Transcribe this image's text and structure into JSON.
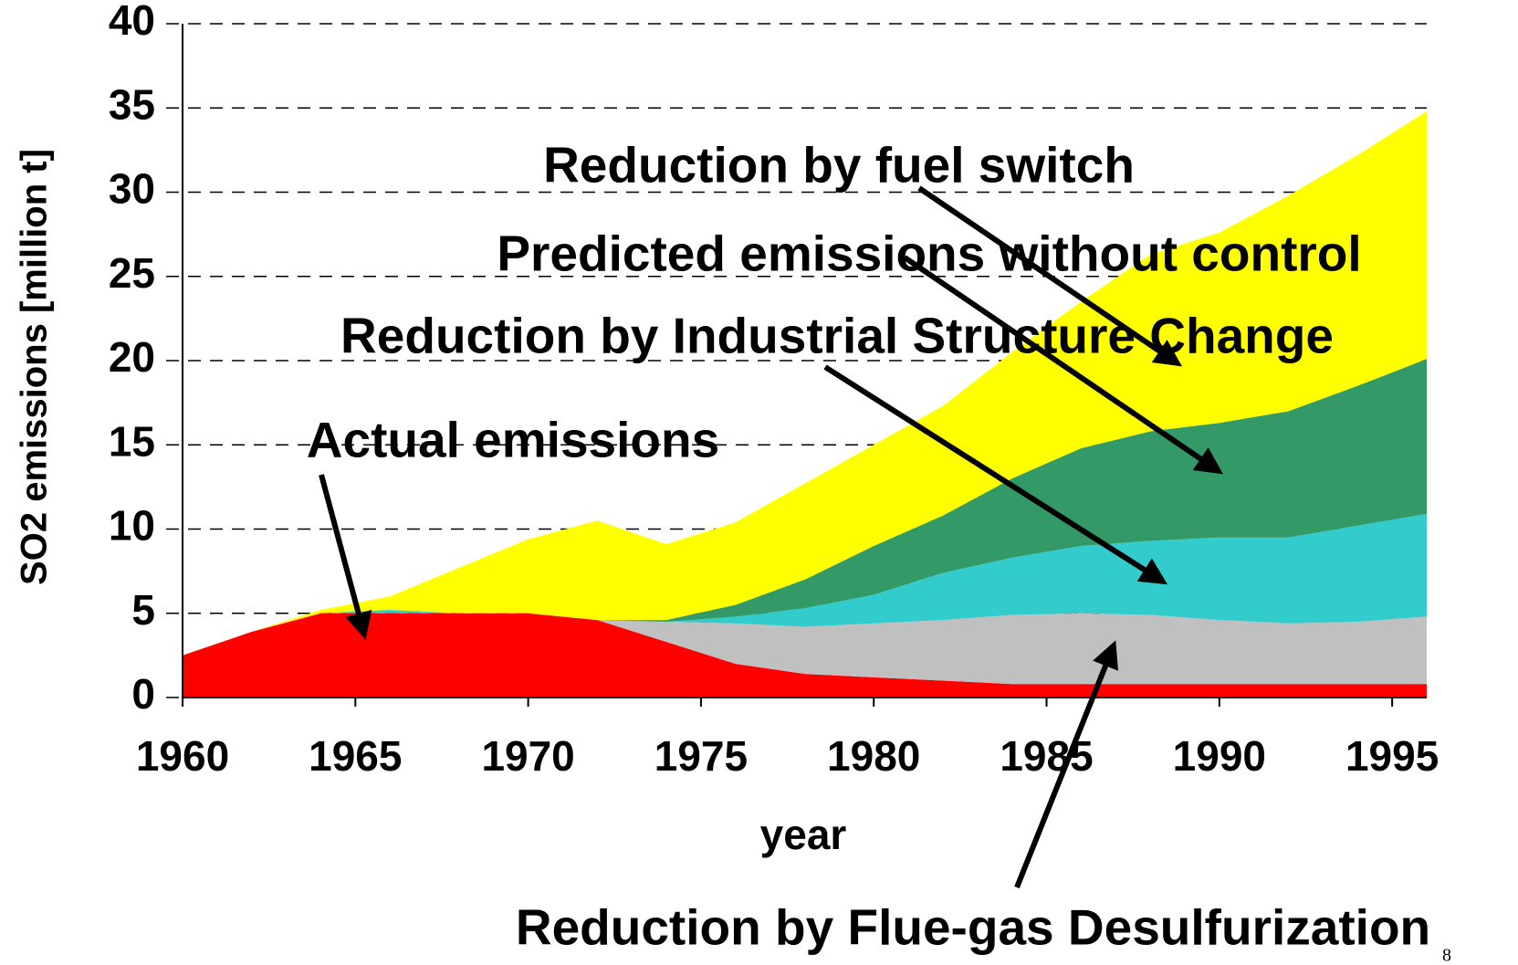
{
  "chart_data": {
    "type": "stacked_area",
    "ylabel": "SO2 emissions [million t]",
    "xlabel": "year",
    "x": [
      1960,
      1962,
      1964,
      1966,
      1968,
      1970,
      1972,
      1974,
      1976,
      1978,
      1980,
      1982,
      1984,
      1986,
      1988,
      1990,
      1992,
      1994,
      1996
    ],
    "series": [
      {
        "name": "Actual emissions",
        "color": "#ff0000",
        "values": [
          2.5,
          3.9,
          5.0,
          5.0,
          5.0,
          5.0,
          4.6,
          3.3,
          2.0,
          1.4,
          1.2,
          1.0,
          0.8,
          0.8,
          0.8,
          0.8,
          0.8,
          0.8,
          0.8
        ]
      },
      {
        "name": "Reduction by Flue-gas Desulfurization",
        "color": "#c0c0c0",
        "values": [
          0,
          0,
          0,
          0,
          0,
          0,
          0,
          1.2,
          2.4,
          2.8,
          3.2,
          3.6,
          4.1,
          4.2,
          4.1,
          3.8,
          3.6,
          3.7,
          4.0
        ]
      },
      {
        "name": "Reduction by Industrial Structure Change",
        "color": "#33cccc",
        "values": [
          0,
          0,
          0,
          0.2,
          0,
          0,
          0,
          0,
          0.4,
          1.1,
          1.7,
          2.8,
          3.4,
          4.0,
          4.4,
          4.9,
          5.1,
          5.7,
          6.1
        ]
      },
      {
        "name": "Predicted emissions without control",
        "color": "#339966",
        "values": [
          0,
          0,
          0,
          0,
          0,
          0,
          0,
          0.1,
          0.7,
          1.7,
          2.9,
          3.4,
          4.7,
          5.8,
          6.5,
          6.8,
          7.5,
          8.3,
          9.2
        ]
      },
      {
        "name": "Reduction by fuel switch",
        "color": "#ffff00",
        "values": [
          0,
          0,
          0.2,
          0.8,
          2.7,
          4.4,
          5.9,
          4.5,
          4.9,
          5.7,
          6.0,
          6.5,
          7.5,
          8.7,
          10.5,
          11.3,
          12.8,
          13.7,
          14.7
        ]
      }
    ],
    "xlim": [
      1960,
      1996
    ],
    "xticks": [
      1960,
      1965,
      1970,
      1975,
      1980,
      1985,
      1990,
      1995
    ],
    "ylim": [
      0,
      40
    ],
    "yticks": [
      0,
      5,
      10,
      15,
      20,
      25,
      30,
      35,
      40
    ],
    "grid": true
  },
  "page_number": "8"
}
